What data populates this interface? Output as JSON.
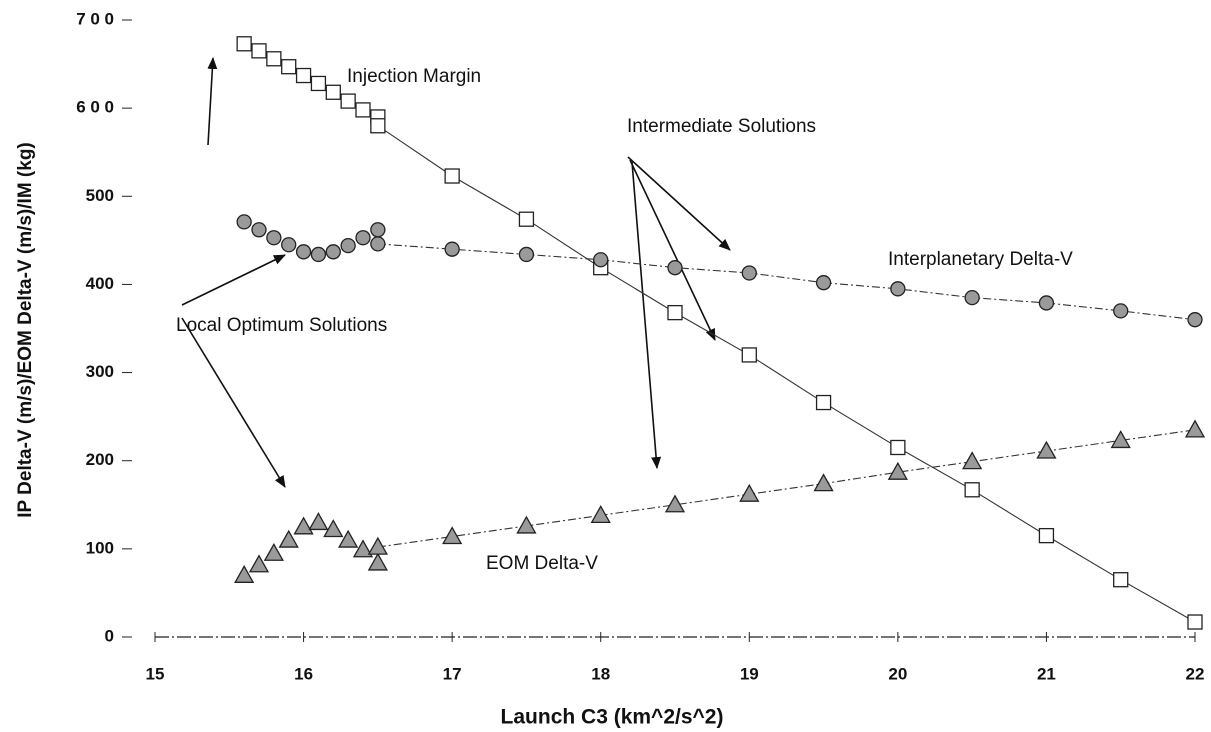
{
  "chart_data": {
    "type": "line",
    "xlabel": "Launch  C3  (km^2/s^2)",
    "ylabel": "IP Delta-V (m/s)/EOM Delta-V (m/s)/IM (kg)",
    "xlim": [
      15,
      22
    ],
    "xticks": [
      15,
      16,
      17,
      18,
      19,
      20,
      21,
      22
    ],
    "ylim": [
      0,
      700
    ],
    "yticks": [
      0,
      100,
      200,
      300,
      400,
      500,
      {
        "value": 600,
        "label": "6 0 0"
      },
      {
        "value": 700,
        "label": "7 0 0"
      }
    ],
    "annotations": [
      "Injection Margin",
      "Intermediate Solutions",
      "Interplanetary Delta-V",
      "Local Optimum Solutions",
      "EOM Delta-V"
    ],
    "series": [
      {
        "marker": "square",
        "color": "#ffffff",
        "line": false,
        "x": [
          15.6,
          15.7,
          15.8,
          15.9,
          16.0,
          16.1,
          16.2,
          16.3,
          16.4,
          16.5
        ],
        "values": [
          673,
          665,
          656,
          647,
          637,
          628,
          618,
          608,
          598,
          590
        ]
      },
      {
        "marker": "square",
        "color": "#ffffff",
        "line": true,
        "x": [
          16.5,
          17,
          17.5,
          18,
          18.5,
          19,
          19.5,
          20,
          20.5,
          21,
          21.5,
          22
        ],
        "values": [
          580,
          523,
          474,
          419,
          368,
          320,
          266,
          215,
          167,
          115,
          65,
          17
        ]
      },
      {
        "marker": "circle",
        "color": "#9a9a9a",
        "line": false,
        "x": [
          15.6,
          15.7,
          15.8,
          15.9,
          16.0,
          16.1,
          16.2,
          16.3,
          16.4,
          16.5
        ],
        "values": [
          471,
          462,
          453,
          445,
          437,
          434,
          437,
          444,
          453,
          462
        ]
      },
      {
        "marker": "circle",
        "color": "#9a9a9a",
        "line": true,
        "x": [
          16.5,
          17,
          17.5,
          18,
          18.5,
          19,
          19.5,
          20,
          20.5,
          21,
          21.5,
          22
        ],
        "values": [
          446,
          440,
          434,
          428,
          419,
          413,
          402,
          395,
          385,
          379,
          370,
          360
        ]
      },
      {
        "marker": "triangle",
        "color": "#9a9a9a",
        "line": false,
        "x": [
          15.6,
          15.7,
          15.8,
          15.9,
          16.0,
          16.1,
          16.2,
          16.3,
          16.4,
          16.5
        ],
        "values": [
          70,
          82,
          95,
          110,
          125,
          130,
          122,
          110,
          99,
          84
        ]
      },
      {
        "marker": "triangle",
        "color": "#9a9a9a",
        "line": true,
        "x": [
          16.5,
          17,
          17.5,
          18,
          18.5,
          19,
          19.5,
          20,
          20.5,
          21,
          21.5,
          22
        ],
        "values": [
          102,
          114,
          126,
          138,
          150,
          162,
          174,
          187,
          199,
          211,
          223,
          235
        ]
      }
    ]
  }
}
